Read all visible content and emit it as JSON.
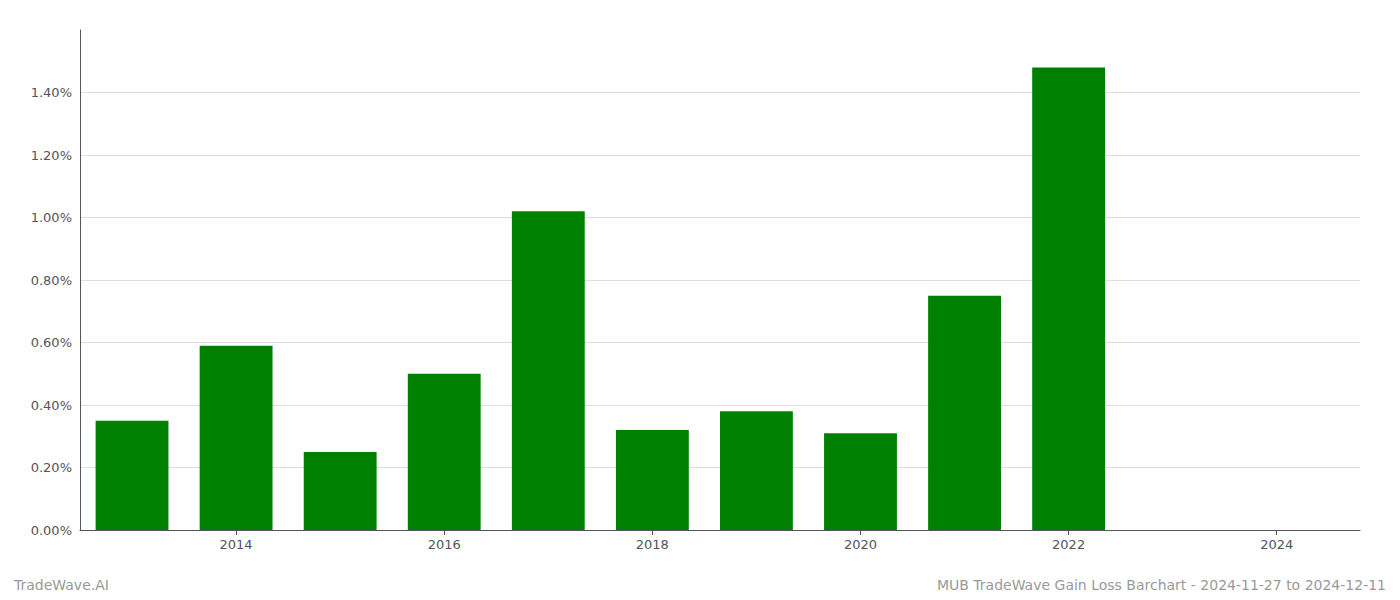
{
  "chart_data": {
    "type": "bar",
    "x": [
      2013,
      2014,
      2015,
      2016,
      2017,
      2018,
      2019,
      2020,
      2021,
      2022,
      2023
    ],
    "values": [
      0.0035,
      0.0059,
      0.0025,
      0.005,
      0.0102,
      0.0032,
      0.0038,
      0.0031,
      0.0075,
      0.0148,
      0.0
    ],
    "color": "#008000",
    "xlim": [
      2012.5,
      2024.8
    ],
    "xticks": [
      2014,
      2016,
      2018,
      2020,
      2022,
      2024
    ],
    "ylim": [
      0,
      0.016
    ],
    "yticks": [
      {
        "value": 0.0,
        "label": "0.00%"
      },
      {
        "value": 0.002,
        "label": "0.20%"
      },
      {
        "value": 0.004,
        "label": "0.40%"
      },
      {
        "value": 0.006,
        "label": "0.60%"
      },
      {
        "value": 0.008,
        "label": "0.80%"
      },
      {
        "value": 0.01,
        "label": "1.00%"
      },
      {
        "value": 0.012,
        "label": "1.20%"
      },
      {
        "value": 0.014,
        "label": "1.40%"
      }
    ],
    "grid": true,
    "annotations": [
      "TradeWave.AI",
      "MUB TradeWave Gain Loss Barchart - 2024-11-27 to 2024-12-11"
    ]
  }
}
